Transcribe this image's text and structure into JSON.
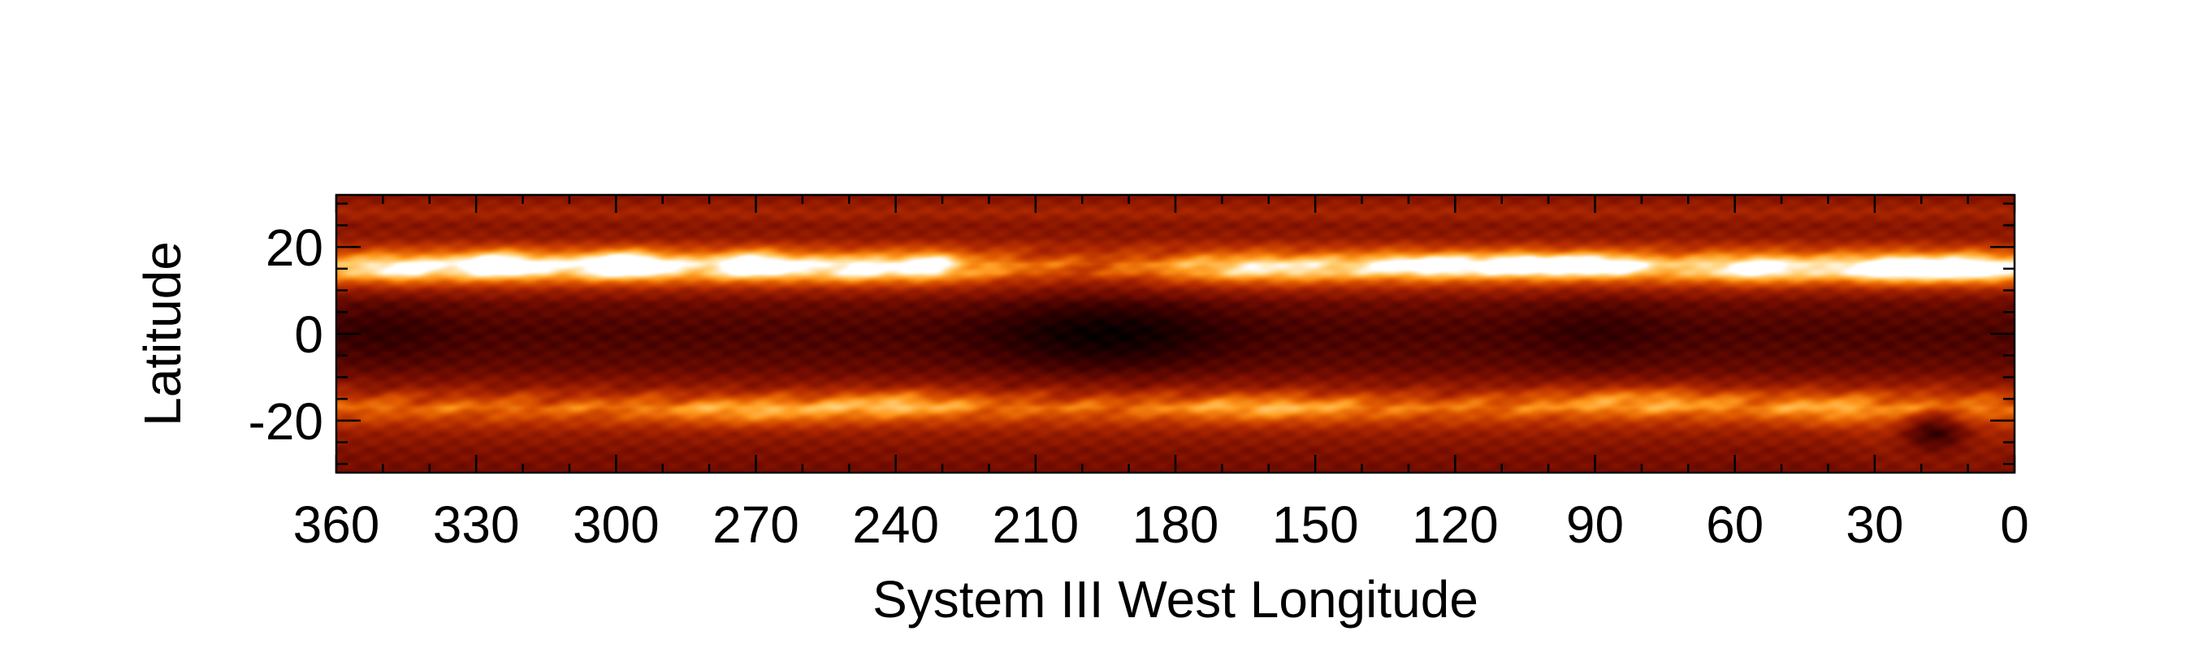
{
  "chart_data": {
    "type": "heatmap",
    "title": "",
    "xlabel": "System III West Longitude",
    "ylabel": "Latitude",
    "xlim": [
      360,
      0
    ],
    "ylim": [
      -32,
      32
    ],
    "x_reversed": true,
    "xticks": [
      360,
      330,
      300,
      270,
      240,
      210,
      180,
      150,
      120,
      90,
      60,
      30,
      0
    ],
    "xtick_labels": [
      "360",
      "330",
      "300",
      "270",
      "240",
      "210",
      "180",
      "150",
      "120",
      "90",
      "60",
      "30",
      "0"
    ],
    "yticks": [
      20,
      0,
      -20
    ],
    "ytick_labels": [
      "20",
      "0",
      "-20"
    ],
    "colormap": [
      "#000000",
      "#3a0000",
      "#7a0e00",
      "#b22a00",
      "#e05a00",
      "#ff9a1e",
      "#ffd27a",
      "#ffffff"
    ],
    "latitude_profile": [
      {
        "lat": 32,
        "v": 0.3
      },
      {
        "lat": 28,
        "v": 0.4
      },
      {
        "lat": 25,
        "v": 0.32
      },
      {
        "lat": 22,
        "v": 0.35
      },
      {
        "lat": 19,
        "v": 0.52
      },
      {
        "lat": 16,
        "v": 0.82
      },
      {
        "lat": 14,
        "v": 0.78
      },
      {
        "lat": 12,
        "v": 0.55
      },
      {
        "lat": 10,
        "v": 0.38
      },
      {
        "lat": 7,
        "v": 0.25
      },
      {
        "lat": 3,
        "v": 0.2
      },
      {
        "lat": 0,
        "v": 0.18
      },
      {
        "lat": -4,
        "v": 0.2
      },
      {
        "lat": -8,
        "v": 0.24
      },
      {
        "lat": -12,
        "v": 0.34
      },
      {
        "lat": -15,
        "v": 0.5
      },
      {
        "lat": -17,
        "v": 0.62
      },
      {
        "lat": -20,
        "v": 0.48
      },
      {
        "lat": -23,
        "v": 0.36
      },
      {
        "lat": -27,
        "v": 0.3
      },
      {
        "lat": -32,
        "v": 0.27
      }
    ],
    "features": [
      {
        "lon": 346,
        "lat": 15,
        "amp": 0.25,
        "rlon": 8,
        "rlat": 3
      },
      {
        "lon": 325,
        "lat": 16,
        "amp": 0.45,
        "rlon": 10,
        "rlat": 3
      },
      {
        "lon": 298,
        "lat": 16,
        "amp": 0.55,
        "rlon": 10,
        "rlat": 3
      },
      {
        "lon": 270,
        "lat": 16,
        "amp": 0.45,
        "rlon": 9,
        "rlat": 3
      },
      {
        "lon": 248,
        "lat": 15,
        "amp": 0.25,
        "rlon": 10,
        "rlat": 3
      },
      {
        "lon": 233,
        "lat": 16,
        "amp": 0.35,
        "rlon": 6,
        "rlat": 3
      },
      {
        "lon": 200,
        "lat": 15,
        "amp": -0.25,
        "rlon": 22,
        "rlat": 4
      },
      {
        "lon": 160,
        "lat": 15,
        "amp": 0.15,
        "rlon": 14,
        "rlat": 3
      },
      {
        "lon": 125,
        "lat": 16,
        "amp": 0.35,
        "rlon": 14,
        "rlat": 2.5
      },
      {
        "lon": 105,
        "lat": 16,
        "amp": 0.4,
        "rlon": 8,
        "rlat": 2.5
      },
      {
        "lon": 90,
        "lat": 16,
        "amp": 0.4,
        "rlon": 10,
        "rlat": 2.5
      },
      {
        "lon": 55,
        "lat": 15,
        "amp": 0.3,
        "rlon": 10,
        "rlat": 3
      },
      {
        "lon": 25,
        "lat": 15,
        "amp": 0.45,
        "rlon": 12,
        "rlat": 3
      },
      {
        "lon": 8,
        "lat": 15,
        "amp": 0.35,
        "rlon": 8,
        "rlat": 3
      },
      {
        "lon": 195,
        "lat": 0,
        "amp": -0.16,
        "rlon": 25,
        "rlat": 9
      },
      {
        "lon": 350,
        "lat": 1,
        "amp": -0.06,
        "rlon": 15,
        "rlat": 9
      },
      {
        "lon": 90,
        "lat": 1,
        "amp": -0.06,
        "rlon": 15,
        "rlat": 9
      },
      {
        "lon": 270,
        "lat": -18,
        "amp": 0.18,
        "rlon": 20,
        "rlat": 3
      },
      {
        "lon": 240,
        "lat": -16,
        "amp": 0.22,
        "rlon": 15,
        "rlat": 3
      },
      {
        "lon": 160,
        "lat": -17,
        "amp": 0.18,
        "rlon": 20,
        "rlat": 3
      },
      {
        "lon": 80,
        "lat": -15,
        "amp": 0.2,
        "rlon": 22,
        "rlat": 3
      },
      {
        "lon": 40,
        "lat": -17,
        "amp": 0.15,
        "rlon": 12,
        "rlat": 4
      },
      {
        "lon": 17,
        "lat": -22,
        "amp": -0.42,
        "rlon": 8,
        "rlat": 5
      },
      {
        "lon": 17,
        "lat": -22,
        "amp": 0.18,
        "rlon": 13,
        "rlat": 8
      }
    ]
  }
}
